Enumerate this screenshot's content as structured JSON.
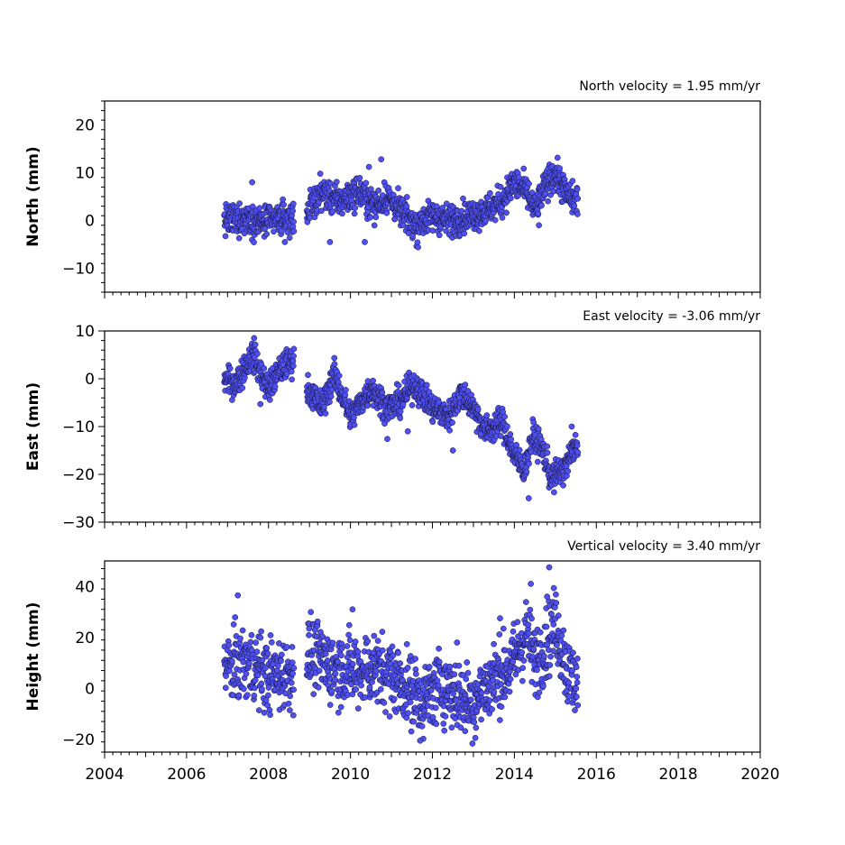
{
  "colors": {
    "marker_fill": "#5050f0",
    "marker_edge": "#111133",
    "axes": "#000000",
    "background": "#ffffff"
  },
  "chart_data": [
    {
      "type": "scatter",
      "title": "North velocity = 1.95 mm/yr",
      "xlabel": "",
      "ylabel": "North (mm)",
      "xlim": [
        2004,
        2020
      ],
      "ylim": [
        -15,
        25
      ],
      "yticks": [
        -10,
        0,
        10,
        20
      ],
      "xticks": [],
      "grid": false,
      "trend": [
        [
          2006.9,
          0
        ],
        [
          2007.5,
          0.5
        ],
        [
          2007.8,
          -0.5
        ],
        [
          2008.3,
          0.3
        ],
        [
          2008.6,
          0.5
        ],
        [
          2008.95,
          2
        ],
        [
          2009.3,
          6
        ],
        [
          2009.7,
          4
        ],
        [
          2010.2,
          6
        ],
        [
          2010.6,
          3
        ],
        [
          2010.9,
          5
        ],
        [
          2011.2,
          2
        ],
        [
          2011.6,
          -1
        ],
        [
          2012.0,
          1
        ],
        [
          2012.4,
          0
        ],
        [
          2012.9,
          1
        ],
        [
          2013.3,
          2
        ],
        [
          2013.7,
          4
        ],
        [
          2014.0,
          8
        ],
        [
          2014.3,
          6
        ],
        [
          2014.5,
          2
        ],
        [
          2014.8,
          8
        ],
        [
          2015.0,
          10
        ],
        [
          2015.3,
          5
        ],
        [
          2015.55,
          4
        ]
      ],
      "spread": 1.6,
      "outliers": [
        [
          2007.6,
          8
        ],
        [
          2008.4,
          -4.5
        ],
        [
          2009.5,
          -4.5
        ],
        [
          2010.35,
          -4.5
        ],
        [
          2010.45,
          11.2
        ],
        [
          2010.75,
          12.8
        ],
        [
          2011.65,
          -5.6
        ],
        [
          2014.6,
          -1
        ]
      ]
    },
    {
      "type": "scatter",
      "title": "East velocity = -3.06 mm/yr",
      "xlabel": "",
      "ylabel": "East (mm)",
      "xlim": [
        2004,
        2020
      ],
      "ylim": [
        -30,
        10
      ],
      "yticks": [
        -30,
        -20,
        -10,
        0,
        10
      ],
      "xticks": [],
      "grid": false,
      "trend": [
        [
          2006.9,
          0
        ],
        [
          2007.2,
          -1
        ],
        [
          2007.6,
          5
        ],
        [
          2008.0,
          -2
        ],
        [
          2008.3,
          2
        ],
        [
          2008.6,
          4
        ],
        [
          2008.95,
          -2
        ],
        [
          2009.3,
          -6
        ],
        [
          2009.6,
          1
        ],
        [
          2010.0,
          -8
        ],
        [
          2010.5,
          -2
        ],
        [
          2010.9,
          -6
        ],
        [
          2011.2,
          -5
        ],
        [
          2011.55,
          -1
        ],
        [
          2012.0,
          -6
        ],
        [
          2012.4,
          -8
        ],
        [
          2012.7,
          -3
        ],
        [
          2013.0,
          -6
        ],
        [
          2013.3,
          -11
        ],
        [
          2013.7,
          -9
        ],
        [
          2014.0,
          -16
        ],
        [
          2014.25,
          -19
        ],
        [
          2014.45,
          -12
        ],
        [
          2014.7,
          -15
        ],
        [
          2014.9,
          -21
        ],
        [
          2015.2,
          -19
        ],
        [
          2015.55,
          -13
        ]
      ],
      "spread": 1.5,
      "outliers": [
        [
          2007.65,
          8.5
        ],
        [
          2007.8,
          -5.3
        ],
        [
          2010.9,
          -12.6
        ],
        [
          2011.4,
          -11
        ],
        [
          2012.5,
          -15
        ],
        [
          2014.35,
          -25
        ],
        [
          2015.4,
          -10
        ]
      ]
    },
    {
      "type": "scatter",
      "title": "Vertical velocity = 3.40 mm/yr",
      "xlabel": "",
      "ylabel": "Height (mm)",
      "xlim": [
        2004,
        2020
      ],
      "ylim": [
        -25,
        50
      ],
      "yticks": [
        -20,
        0,
        20,
        40
      ],
      "xticks": [
        2004,
        2006,
        2008,
        2010,
        2012,
        2014,
        2016,
        2018,
        2020
      ],
      "grid": false,
      "trend": [
        [
          2006.9,
          8
        ],
        [
          2007.5,
          10
        ],
        [
          2008.0,
          5
        ],
        [
          2008.6,
          6
        ],
        [
          2008.95,
          14
        ],
        [
          2009.5,
          9
        ],
        [
          2010.0,
          7
        ],
        [
          2010.5,
          8
        ],
        [
          2011.0,
          5
        ],
        [
          2011.5,
          -1
        ],
        [
          2011.8,
          -5
        ],
        [
          2012.2,
          2
        ],
        [
          2012.7,
          -4
        ],
        [
          2013.0,
          -5
        ],
        [
          2013.5,
          4
        ],
        [
          2013.9,
          8
        ],
        [
          2014.3,
          22
        ],
        [
          2014.5,
          10
        ],
        [
          2014.8,
          18
        ],
        [
          2015.0,
          26
        ],
        [
          2015.3,
          6
        ],
        [
          2015.55,
          2
        ]
      ],
      "spread": 7,
      "outliers": [
        [
          2007.25,
          36.5
        ],
        [
          2010.05,
          31
        ],
        [
          2011.7,
          -20.5
        ],
        [
          2012.6,
          18
        ],
        [
          2014.4,
          41
        ],
        [
          2014.85,
          47.5
        ],
        [
          2014.8,
          36
        ],
        [
          2013.65,
          27.5
        ]
      ]
    }
  ]
}
